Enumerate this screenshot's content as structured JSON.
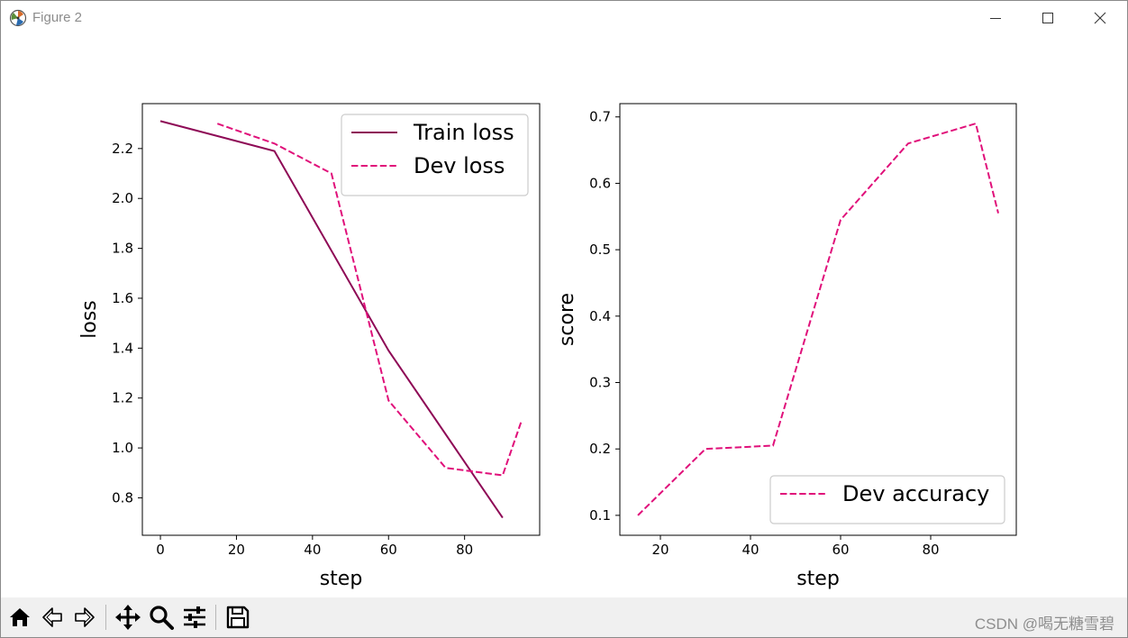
{
  "window": {
    "title": "Figure 2",
    "icons": {
      "app": "matplotlib-icon",
      "minimize": "minimize-icon",
      "maximize": "maximize-icon",
      "close": "close-icon"
    }
  },
  "toolbar": {
    "buttons": [
      {
        "name": "home",
        "icon": "home-icon"
      },
      {
        "name": "back",
        "icon": "back-arrow-icon"
      },
      {
        "name": "forward",
        "icon": "forward-arrow-icon"
      },
      {
        "name": "pan",
        "icon": "move-icon"
      },
      {
        "name": "zoom",
        "icon": "magnifier-icon"
      },
      {
        "name": "configure-subplots",
        "icon": "sliders-icon"
      },
      {
        "name": "save",
        "icon": "floppy-disk-icon"
      }
    ]
  },
  "watermark": "CSDN @喝无糖雪碧",
  "colors": {
    "train": "#8e0a56",
    "dev": "#e0107a"
  },
  "chart_data": [
    {
      "type": "line",
      "xlabel": "step",
      "ylabel": "loss",
      "xlim": [
        -4.75,
        99.75
      ],
      "ylim": [
        0.65,
        2.38
      ],
      "xticks": [
        0,
        20,
        40,
        60,
        80
      ],
      "yticks": [
        0.8,
        1.0,
        1.2,
        1.4,
        1.6,
        1.8,
        2.0,
        2.2
      ],
      "ytick_labels": [
        "0.8",
        "1.0",
        "1.2",
        "1.4",
        "1.6",
        "1.8",
        "2.0",
        "2.2"
      ],
      "legend": "top-right",
      "series": [
        {
          "name": "Train loss",
          "style": "solid",
          "color": "#8e0a56",
          "x": [
            0,
            30,
            60,
            90
          ],
          "y": [
            2.31,
            2.19,
            1.39,
            0.72
          ]
        },
        {
          "name": "Dev loss",
          "style": "dashed",
          "color": "#e0107a",
          "x": [
            15,
            30,
            45,
            60,
            75,
            90,
            95
          ],
          "y": [
            2.3,
            2.22,
            2.1,
            1.19,
            0.92,
            0.89,
            1.11
          ]
        }
      ]
    },
    {
      "type": "line",
      "xlabel": "step",
      "ylabel": "score",
      "xlim": [
        11,
        99
      ],
      "ylim": [
        0.07,
        0.72
      ],
      "xticks": [
        20,
        40,
        60,
        80
      ],
      "yticks": [
        0.1,
        0.2,
        0.3,
        0.4,
        0.5,
        0.6,
        0.7
      ],
      "ytick_labels": [
        "0.1",
        "0.2",
        "0.3",
        "0.4",
        "0.5",
        "0.6",
        "0.7"
      ],
      "legend": "bottom-right",
      "series": [
        {
          "name": "Dev accuracy",
          "style": "dashed",
          "color": "#e0107a",
          "x": [
            15,
            30,
            45,
            60,
            75,
            90,
            95
          ],
          "y": [
            0.1,
            0.2,
            0.205,
            0.545,
            0.66,
            0.69,
            0.555
          ]
        }
      ]
    }
  ]
}
